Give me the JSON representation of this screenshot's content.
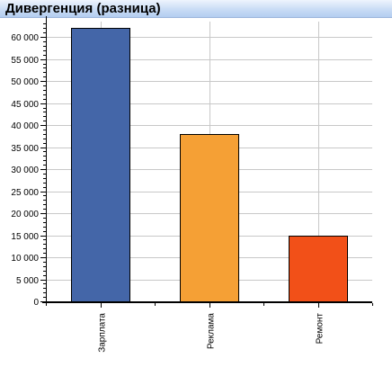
{
  "panel": {
    "title": "Дивергенция (разница)"
  },
  "chart_data": {
    "type": "bar",
    "categories": [
      "Зарплата",
      "Реклама",
      "Ремонт"
    ],
    "values": [
      62000,
      38000,
      15000
    ],
    "colors": [
      "#4466a8",
      "#f5a035",
      "#f25018"
    ],
    "ylim": [
      0,
      63500
    ],
    "yticks": [
      0,
      5000,
      10000,
      15000,
      20000,
      25000,
      30000,
      35000,
      40000,
      45000,
      50000,
      55000,
      60000
    ],
    "ytick_labels": [
      "0",
      "5 000",
      "10 000",
      "15 000",
      "20 000",
      "25 000",
      "30 000",
      "35 000",
      "40 000",
      "45 000",
      "50 000",
      "55 000",
      "60 000"
    ],
    "minor_step": 1000,
    "grid": true,
    "legend": "none"
  }
}
